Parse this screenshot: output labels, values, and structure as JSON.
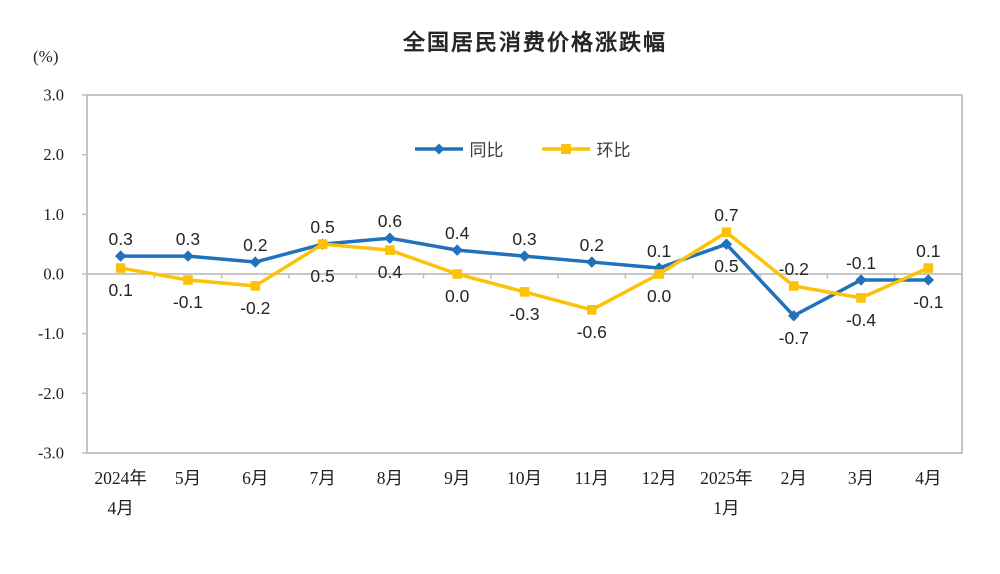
{
  "title": "全国居民消费价格涨跌幅",
  "axis_unit": "(%)",
  "chart_data": {
    "type": "line",
    "title": "全国居民消费价格涨跌幅",
    "ylabel_unit": "(%)",
    "categories": [
      [
        "2024年",
        "4月"
      ],
      [
        "5月"
      ],
      [
        "6月"
      ],
      [
        "7月"
      ],
      [
        "8月"
      ],
      [
        "9月"
      ],
      [
        "10月"
      ],
      [
        "11月"
      ],
      [
        "12月"
      ],
      [
        "2025年",
        "1月"
      ],
      [
        "2月"
      ],
      [
        "3月"
      ],
      [
        "4月"
      ]
    ],
    "series": [
      {
        "name": "同比",
        "marker": "diamond",
        "color": "#2172BC",
        "values": [
          0.3,
          0.3,
          0.2,
          0.5,
          0.6,
          0.4,
          0.3,
          0.2,
          0.1,
          0.5,
          -0.7,
          -0.1,
          -0.1
        ]
      },
      {
        "name": "环比",
        "marker": "square",
        "color": "#FCC208",
        "values": [
          0.1,
          -0.1,
          -0.2,
          0.5,
          0.4,
          0.0,
          -0.3,
          -0.6,
          0.0,
          0.7,
          -0.2,
          -0.4,
          0.1
        ]
      }
    ],
    "ylim": [
      -3.0,
      3.0
    ],
    "ytick_step": 1.0,
    "ytick_labels": [
      "3.0",
      "2.0",
      "1.0",
      "0.0",
      "-1.0",
      "-2.0",
      "-3.0"
    ],
    "grid": false,
    "legend_position": "top-center",
    "data_labels": true
  },
  "colors": {
    "axis_line": "#BFBFBF",
    "tick_text": "#1f1f1f",
    "data_label_text": "#262626",
    "background": "#FFFFFF"
  }
}
